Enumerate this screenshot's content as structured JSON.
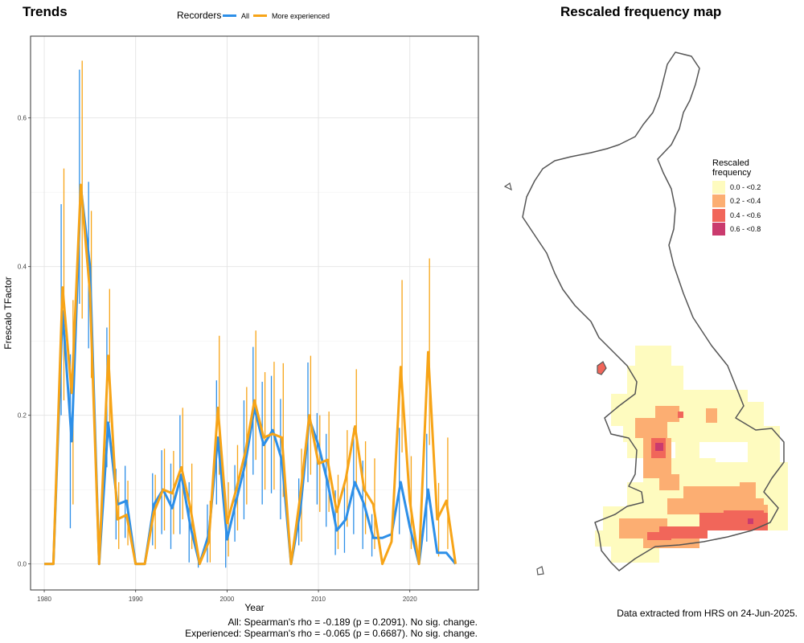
{
  "trends_title": "Trends",
  "map_title": "Rescaled frequency map",
  "legend": {
    "title": "Recorders",
    "items": [
      {
        "label": "All",
        "color": "#2D8FE8"
      },
      {
        "label": "More experienced",
        "color": "#F7A417"
      }
    ]
  },
  "stats": {
    "all": "All: Spearman's rho = -0.189 (p = 0.2091). No sig. change.",
    "experienced": "Experienced: Spearman's rho = -0.065 (p = 0.6687). No sig. change."
  },
  "map": {
    "legend_title_line1": "Rescaled",
    "legend_title_line2": "frequency",
    "classes": [
      {
        "label": "0.0 - <0.2",
        "color": "#FEFBBF"
      },
      {
        "label": "0.2 - <0.4",
        "color": "#FCAE72"
      },
      {
        "label": "0.4 - <0.6",
        "color": "#F1665A"
      },
      {
        "label": "0.6 - <0.8",
        "color": "#CA3B6E"
      }
    ],
    "note": "Data extracted from HRS on 24-Jun-2025."
  },
  "chart_data": {
    "type": "line",
    "xlabel": "Year",
    "ylabel": "Frescalo TFactor",
    "xlim": [
      1978.5,
      2027.5
    ],
    "ylim": [
      -0.035,
      0.71
    ],
    "x_ticks": [
      1980,
      1990,
      2000,
      2010,
      2020
    ],
    "y_ticks": [
      0.0,
      0.2,
      0.4,
      0.6
    ],
    "y_tick_labels": [
      "0.0",
      "0.2",
      "0.4",
      "0.6"
    ],
    "grid": true,
    "legend_position": "top",
    "x": [
      1980,
      1981,
      1982,
      1983,
      1984,
      1985,
      1986,
      1987,
      1988,
      1989,
      1990,
      1991,
      1992,
      1993,
      1994,
      1995,
      1996,
      1997,
      1998,
      1999,
      2000,
      2001,
      2002,
      2003,
      2004,
      2005,
      2006,
      2007,
      2008,
      2009,
      2010,
      2011,
      2012,
      2013,
      2014,
      2015,
      2016,
      2017,
      2018,
      2019,
      2020,
      2021,
      2022,
      2023,
      2024,
      2025
    ],
    "series": [
      {
        "name": "All",
        "color": "#2D8FE8",
        "values": [
          0.0,
          0.0,
          0.34,
          0.165,
          0.507,
          0.4,
          0.0,
          0.19,
          0.08,
          0.085,
          0.0,
          0.0,
          0.08,
          0.1,
          0.075,
          0.12,
          0.05,
          0.0,
          0.04,
          0.17,
          0.033,
          0.085,
          0.135,
          0.21,
          0.16,
          0.18,
          0.14,
          0.0,
          0.07,
          0.195,
          0.16,
          0.11,
          0.045,
          0.06,
          0.11,
          0.08,
          0.035,
          0.035,
          0.04,
          0.11,
          0.05,
          0.0,
          0.1,
          0.015,
          0.015,
          0.0
        ],
        "lower": [
          null,
          null,
          0.2,
          0.048,
          0.35,
          0.29,
          null,
          0.13,
          0.033,
          0.035,
          null,
          null,
          0.025,
          0.04,
          0.02,
          0.04,
          0.002,
          -0.005,
          0.002,
          0.08,
          -0.005,
          0.03,
          0.06,
          0.12,
          0.08,
          0.095,
          0.06,
          null,
          0.025,
          0.11,
          0.08,
          0.05,
          0.012,
          0.015,
          0.04,
          0.02,
          0.01,
          null,
          null,
          0.04,
          null,
          null,
          0.03,
          null,
          null,
          null
        ],
        "upper": [
          null,
          null,
          0.484,
          0.282,
          0.665,
          0.514,
          null,
          0.318,
          0.128,
          0.132,
          null,
          null,
          0.122,
          0.153,
          0.135,
          0.2,
          0.11,
          0.012,
          0.08,
          0.247,
          0.068,
          0.133,
          0.22,
          0.292,
          0.245,
          0.253,
          0.222,
          null,
          0.115,
          0.271,
          0.203,
          0.175,
          0.099,
          0.111,
          0.183,
          0.139,
          0.067,
          null,
          null,
          0.183,
          null,
          null,
          0.175,
          null,
          null,
          null
        ]
      },
      {
        "name": "More experienced",
        "color": "#F7A417",
        "values": [
          0.0,
          0.0,
          0.372,
          0.23,
          0.51,
          0.365,
          0.0,
          0.28,
          0.06,
          0.066,
          0.0,
          0.0,
          0.07,
          0.1,
          0.095,
          0.13,
          0.075,
          0.0,
          0.03,
          0.21,
          0.055,
          0.1,
          0.15,
          0.22,
          0.17,
          0.175,
          0.17,
          0.0,
          0.09,
          0.2,
          0.135,
          0.14,
          0.07,
          0.115,
          0.185,
          0.1,
          0.08,
          0.0,
          0.03,
          0.265,
          0.085,
          0.0,
          0.285,
          0.06,
          0.085,
          0.0
        ],
        "lower": [
          null,
          null,
          0.22,
          0.08,
          0.33,
          0.25,
          null,
          0.19,
          0.02,
          0.025,
          null,
          null,
          0.02,
          0.045,
          0.04,
          0.06,
          0.02,
          null,
          0.002,
          0.12,
          0.01,
          0.045,
          0.08,
          0.14,
          0.1,
          0.1,
          0.09,
          null,
          0.03,
          0.12,
          0.07,
          0.07,
          0.02,
          0.05,
          0.1,
          0.04,
          0.02,
          null,
          null,
          0.15,
          0.02,
          null,
          0.16,
          0.01,
          0.02,
          null
        ],
        "upper": [
          null,
          null,
          0.532,
          0.355,
          0.677,
          0.475,
          null,
          0.37,
          0.11,
          0.112,
          null,
          null,
          0.12,
          0.155,
          0.152,
          0.21,
          0.135,
          null,
          0.085,
          0.307,
          0.11,
          0.16,
          0.238,
          0.314,
          0.258,
          0.272,
          0.27,
          null,
          0.155,
          0.28,
          0.2,
          0.205,
          0.12,
          0.18,
          0.262,
          0.165,
          0.142,
          null,
          null,
          0.382,
          0.145,
          null,
          0.411,
          0.109,
          0.17,
          null
        ]
      }
    ]
  }
}
